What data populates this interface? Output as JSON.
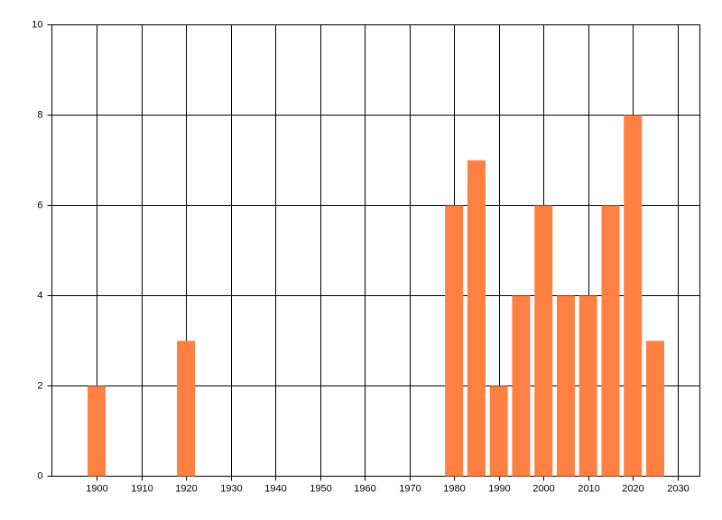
{
  "chart_data": {
    "type": "bar",
    "x": [
      1900,
      1920,
      1980,
      1985,
      1990,
      1995,
      2000,
      2005,
      2010,
      2015,
      2020,
      2025
    ],
    "values": [
      2,
      3,
      6,
      7,
      2,
      4,
      6,
      4,
      4,
      6,
      8,
      3
    ],
    "color": "#ff8040",
    "xlim": [
      1890,
      2035
    ],
    "xticks": [
      1900,
      1910,
      1920,
      1930,
      1940,
      1950,
      1960,
      1970,
      1980,
      1990,
      2000,
      2010,
      2020,
      2030
    ],
    "ylim": [
      0,
      10
    ],
    "yticks": [
      0,
      2,
      4,
      6,
      8,
      10
    ],
    "grid": true
  }
}
